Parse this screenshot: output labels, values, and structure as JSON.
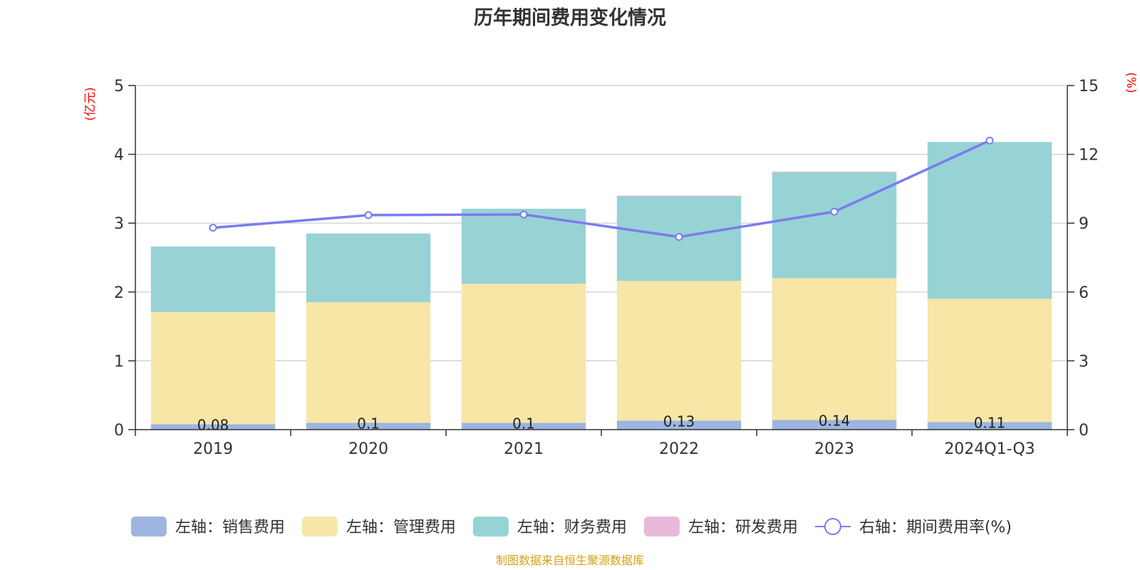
{
  "chart_data": {
    "type": "bar",
    "title": "历年期间费用变化情况",
    "categories": [
      "2019",
      "2020",
      "2021",
      "2022",
      "2023",
      "2024Q1-Q3"
    ],
    "left_axis": {
      "unit_label": "(亿元)",
      "ylim": [
        0,
        5
      ],
      "ticks": [
        "0",
        "1",
        "2",
        "3",
        "4",
        "5"
      ]
    },
    "right_axis": {
      "unit_label": "(%)",
      "ylim": [
        0,
        15
      ],
      "ticks": [
        "0",
        "3",
        "6",
        "9",
        "12",
        "15"
      ]
    },
    "grid": true,
    "stacked_series": [
      {
        "name": "左轴：销售费用",
        "color": "#9db5e0",
        "values": [
          0.08,
          0.1,
          0.1,
          0.13,
          0.14,
          0.11
        ],
        "data_labels": [
          "0.08",
          "0.1",
          "0.1",
          "0.13",
          "0.14",
          "0.11"
        ]
      },
      {
        "name": "左轴：管理费用",
        "color": "#f7e6a6",
        "values": [
          1.63,
          1.75,
          2.02,
          2.03,
          2.06,
          1.79
        ]
      },
      {
        "name": "左轴：财务费用",
        "color": "#97d3d4",
        "values": [
          0.95,
          1.0,
          1.09,
          1.23,
          1.54,
          2.28
        ]
      },
      {
        "name": "左轴：研发费用",
        "color": "#e8b9d8",
        "values": [
          0.0,
          0.0,
          0.0,
          0.01,
          0.01,
          0.0
        ]
      }
    ],
    "line_series": {
      "name": "右轴：期间费用率(%)",
      "color": "#7b7bf0",
      "values": [
        8.8,
        9.35,
        9.38,
        8.4,
        9.5,
        12.6
      ]
    },
    "legend_position": "bottom"
  },
  "source_note": "制图数据来自恒生聚源数据库"
}
